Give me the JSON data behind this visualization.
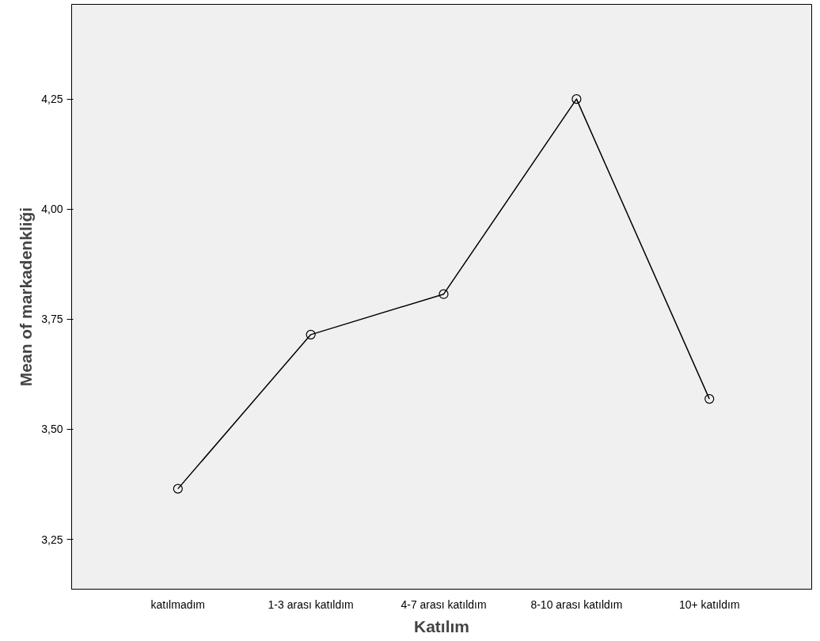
{
  "chart_data": {
    "type": "line",
    "xlabel": "Katılım",
    "ylabel": "Mean of markadenkliği",
    "categories": [
      "katılmadım",
      "1-3 arası katıldım",
      "4-7 arası katıldım",
      "8-10 arası katıldım",
      "10+ katıldım"
    ],
    "series": [
      {
        "color": "#000000",
        "values": [
          3.365,
          3.715,
          3.807,
          4.25,
          3.569
        ]
      }
    ],
    "ylim": [
      3.137,
      4.465
    ],
    "yticks": [
      {
        "value": 3.25,
        "label": "3,25"
      },
      {
        "value": 3.5,
        "label": "3,50"
      },
      {
        "value": 3.75,
        "label": "3,75"
      },
      {
        "value": 4.0,
        "label": "4,00"
      },
      {
        "value": 4.25,
        "label": "4,25"
      }
    ],
    "grid": false,
    "marker": "circle",
    "line_style": "solid"
  }
}
